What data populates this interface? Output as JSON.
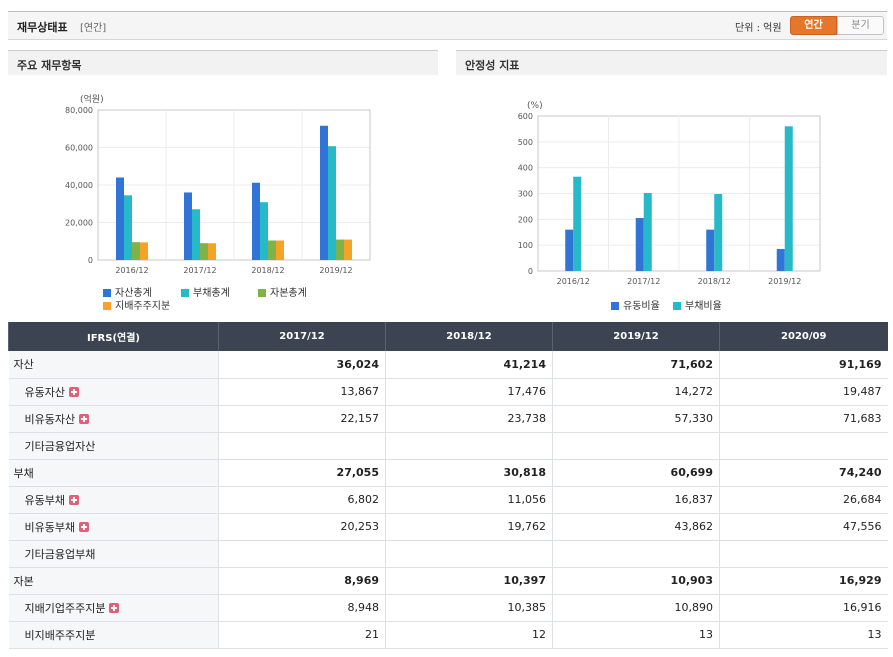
{
  "header": {
    "title": "재무상태표",
    "subtitle": "[연간]",
    "unit_label": "단위 : 억원",
    "toggle_annual": "연간",
    "toggle_quarter": "분기"
  },
  "panels": {
    "left_title": "주요 재무항목",
    "right_title": "안정성 지표"
  },
  "chart_data": [
    {
      "type": "bar",
      "ylabel": "(억원)",
      "ylim": [
        0,
        80000
      ],
      "yticks": [
        "80,000",
        "60,000",
        "40,000",
        "20,000",
        "0"
      ],
      "categories": [
        "2016/12",
        "2017/12",
        "2018/12",
        "2019/12"
      ],
      "legend_position": "bottom",
      "series": [
        {
          "name": "자산총계",
          "color": "#2f74d6",
          "values": [
            44000,
            36024,
            41214,
            71602
          ]
        },
        {
          "name": "부채총계",
          "color": "#26b9c8",
          "values": [
            34500,
            27055,
            30818,
            60699
          ]
        },
        {
          "name": "자본총계",
          "color": "#7fb347",
          "values": [
            9500,
            8969,
            10397,
            10903
          ]
        },
        {
          "name": "지배주주지분",
          "color": "#f5a326",
          "values": [
            9400,
            8948,
            10385,
            10890
          ]
        }
      ]
    },
    {
      "type": "bar",
      "ylabel": "(%)",
      "ylim": [
        0,
        600
      ],
      "yticks": [
        "600",
        "500",
        "400",
        "300",
        "200",
        "100",
        "0"
      ],
      "categories": [
        "2016/12",
        "2017/12",
        "2018/12",
        "2019/12"
      ],
      "legend_position": "bottom",
      "series": [
        {
          "name": "유동비율",
          "color": "#2f74d6",
          "values": [
            160,
            205,
            160,
            85
          ]
        },
        {
          "name": "부채비율",
          "color": "#26b9c8",
          "values": [
            365,
            302,
            298,
            560
          ]
        }
      ]
    }
  ],
  "table": {
    "header": [
      "IFRS(연결)",
      "2017/12",
      "2018/12",
      "2019/12",
      "2020/09"
    ],
    "rows": [
      {
        "label": "자산",
        "level": 0,
        "values": [
          "36,024",
          "41,214",
          "71,602",
          "91,169"
        ],
        "expand": false
      },
      {
        "label": "유동자산",
        "level": 1,
        "values": [
          "13,867",
          "17,476",
          "14,272",
          "19,487"
        ],
        "expand": true
      },
      {
        "label": "비유동자산",
        "level": 1,
        "values": [
          "22,157",
          "23,738",
          "57,330",
          "71,683"
        ],
        "expand": true
      },
      {
        "label": "기타금융업자산",
        "level": 1,
        "values": [
          "",
          "",
          "",
          ""
        ],
        "expand": false
      },
      {
        "label": "부채",
        "level": 0,
        "values": [
          "27,055",
          "30,818",
          "60,699",
          "74,240"
        ],
        "expand": false
      },
      {
        "label": "유동부채",
        "level": 1,
        "values": [
          "6,802",
          "11,056",
          "16,837",
          "26,684"
        ],
        "expand": true
      },
      {
        "label": "비유동부채",
        "level": 1,
        "values": [
          "20,253",
          "19,762",
          "43,862",
          "47,556"
        ],
        "expand": true
      },
      {
        "label": "기타금융업부채",
        "level": 1,
        "values": [
          "",
          "",
          "",
          ""
        ],
        "expand": false
      },
      {
        "label": "자본",
        "level": 0,
        "values": [
          "8,969",
          "10,397",
          "10,903",
          "16,929"
        ],
        "expand": false
      },
      {
        "label": "지배기업주주지분",
        "level": 1,
        "values": [
          "8,948",
          "10,385",
          "10,890",
          "16,916"
        ],
        "expand": true
      },
      {
        "label": "비지배주주지분",
        "level": 1,
        "values": [
          "21",
          "12",
          "13",
          "13"
        ],
        "expand": false
      }
    ]
  }
}
